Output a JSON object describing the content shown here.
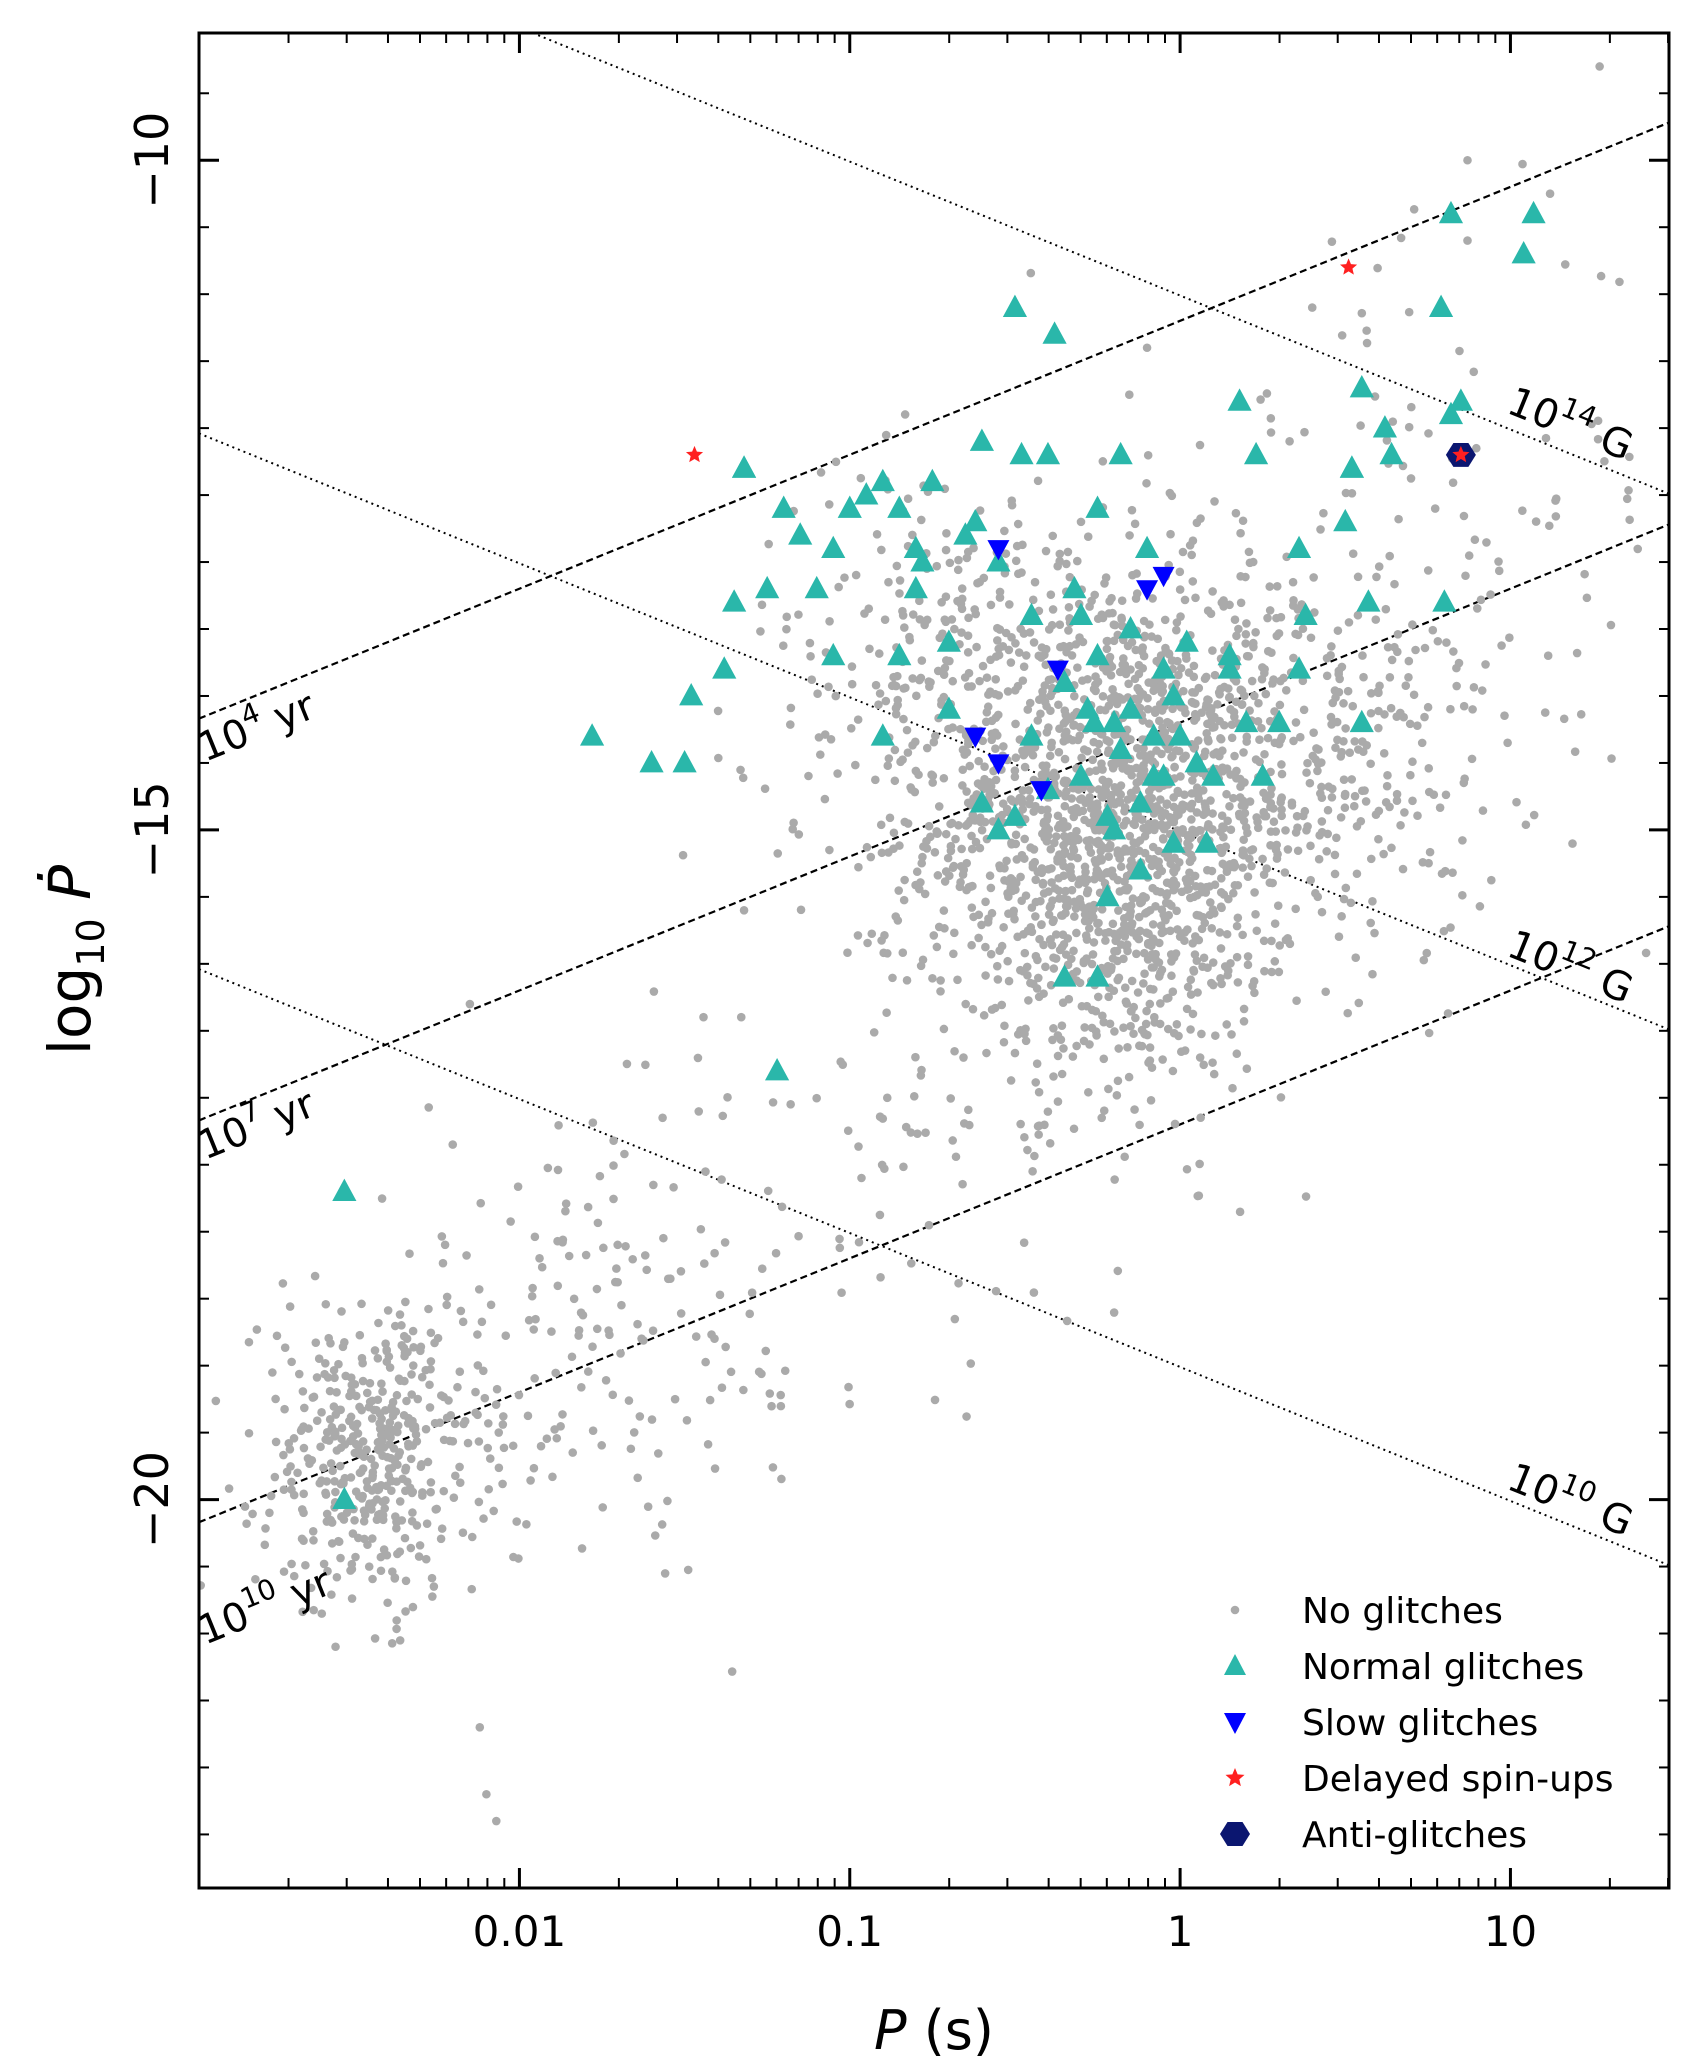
{
  "chart_data": {
    "type": "scatter",
    "xscale": "log",
    "xlim_log10": [
      -2.97,
      1.48
    ],
    "ylim": [
      -22.9,
      -9.05
    ],
    "xlabel_main": "P",
    "xlabel_unit": " (s)",
    "ylabel_main": "log",
    "ylabel_sub": "10",
    "ylabel_var": "Ṗ",
    "xticks": [
      {
        "value_log10": -2,
        "label": "0.01"
      },
      {
        "value_log10": -1,
        "label": "0.1"
      },
      {
        "value_log10": 0,
        "label": "1"
      },
      {
        "value_log10": 1,
        "label": "10"
      }
    ],
    "yticks": [
      {
        "value": -10,
        "label": "−10"
      },
      {
        "value": -15,
        "label": "−15"
      },
      {
        "value": -20,
        "label": "−20"
      }
    ],
    "age_lines": [
      {
        "age_log10": 4,
        "label_base": "10",
        "label_exp": "4",
        "label_unit": " yr"
      },
      {
        "age_log10": 7,
        "label_base": "10",
        "label_exp": "7",
        "label_unit": " yr"
      },
      {
        "age_log10": 10,
        "label_base": "10",
        "label_exp": "10",
        "label_unit": " yr"
      }
    ],
    "field_lines": [
      {
        "b_log10": 14,
        "label_base": "10",
        "label_exp": "14",
        "label_unit": " G"
      },
      {
        "b_log10": 12,
        "label_base": "10",
        "label_exp": "12",
        "label_unit": " G"
      },
      {
        "b_log10": 10,
        "label_base": "10",
        "label_exp": "10",
        "label_unit": " G"
      }
    ],
    "legend": {
      "position": "lower-right",
      "entries": [
        {
          "key": "none",
          "label": "No glitches",
          "color": "#aaaaaa",
          "marker": "dot"
        },
        {
          "key": "normal",
          "label": "Normal glitches",
          "color": "#2ab7aa",
          "marker": "triangle-up"
        },
        {
          "key": "slow",
          "label": "Slow glitches",
          "color": "#0000ff",
          "marker": "triangle-down"
        },
        {
          "key": "delayed",
          "label": "Delayed spin-ups",
          "color": "#ff2020",
          "marker": "star"
        },
        {
          "key": "anti",
          "label": "Anti-glitches",
          "color": "#0b1670",
          "marker": "hexagon"
        }
      ]
    },
    "series": [
      {
        "name": "No glitches",
        "note": "about 2800 pulsars shown as a dense point cloud; representative density groups (log10 P, log10 Pdot centre, spread, count)",
        "groups": [
          {
            "x": -0.2,
            "y": -15.0,
            "sx": 0.28,
            "sy": 0.95,
            "n": 1500
          },
          {
            "x": 0.3,
            "y": -14.4,
            "sx": 0.35,
            "sy": 0.8,
            "n": 450
          },
          {
            "x": -0.7,
            "y": -13.8,
            "sx": 0.3,
            "sy": 0.8,
            "n": 260
          },
          {
            "x": -2.45,
            "y": -19.7,
            "sx": 0.17,
            "sy": 0.55,
            "n": 420
          },
          {
            "x": -1.75,
            "y": -18.8,
            "sx": 0.45,
            "sy": 0.8,
            "n": 180
          },
          {
            "x": -0.9,
            "y": -17.2,
            "sx": 0.45,
            "sy": 0.7,
            "n": 70
          },
          {
            "x": 0.75,
            "y": -12.5,
            "sx": 0.4,
            "sy": 1.0,
            "n": 80
          }
        ],
        "isolated": [
          {
            "x": 1.27,
            "y": -9.3
          },
          {
            "x": 0.87,
            "y": -10.0
          },
          {
            "x": 0.87,
            "y": -10.6
          },
          {
            "x": 1.12,
            "y": -10.25
          },
          {
            "x": 0.4,
            "y": -11.1
          },
          {
            "x": -2.15,
            "y": -16.3
          },
          {
            "x": -2.12,
            "y": -21.7
          },
          {
            "x": -2.1,
            "y": -22.2
          },
          {
            "x": -2.07,
            "y": -22.4
          },
          {
            "x": -1.32,
            "y": -15.6
          },
          {
            "x": -0.3,
            "y": -12.7
          },
          {
            "x": -0.1,
            "y": -11.4
          }
        ]
      },
      {
        "name": "Normal glitches",
        "points": [
          [
            -1.78,
            -14.3
          ],
          [
            -1.32,
            -12.3
          ],
          [
            -2.53,
            -17.7
          ],
          [
            -2.53,
            -20.0
          ],
          [
            -1.22,
            -16.8
          ],
          [
            -1.5,
            -14.5
          ],
          [
            -1.6,
            -14.5
          ],
          [
            -1.48,
            -14.0
          ],
          [
            -1.38,
            -13.8
          ],
          [
            -1.35,
            -13.3
          ],
          [
            -1.32,
            -12.3
          ],
          [
            -1.2,
            -12.6
          ],
          [
            -1.15,
            -12.8
          ],
          [
            -1.1,
            -13.2
          ],
          [
            -1.05,
            -12.9
          ],
          [
            -1.0,
            -12.6
          ],
          [
            -0.95,
            -12.5
          ],
          [
            -0.9,
            -12.4
          ],
          [
            -0.85,
            -13.7
          ],
          [
            -0.8,
            -13.2
          ],
          [
            -0.8,
            -12.9
          ],
          [
            -0.75,
            -12.4
          ],
          [
            -0.7,
            -13.6
          ],
          [
            -0.65,
            -12.8
          ],
          [
            -0.6,
            -12.1
          ],
          [
            -0.55,
            -13.0
          ],
          [
            -0.5,
            -14.9
          ],
          [
            -0.48,
            -12.2
          ],
          [
            -0.45,
            -13.4
          ],
          [
            -0.4,
            -12.2
          ],
          [
            -0.35,
            -13.9
          ],
          [
            -0.3,
            -13.4
          ],
          [
            -0.25,
            -12.6
          ],
          [
            -0.22,
            -15.5
          ],
          [
            -0.2,
            -14.2
          ],
          [
            -0.18,
            -12.2
          ],
          [
            -0.15,
            -13.5
          ],
          [
            -0.12,
            -15.3
          ],
          [
            -0.1,
            -12.9
          ],
          [
            -0.08,
            -14.6
          ],
          [
            -0.05,
            -13.8
          ],
          [
            -0.02,
            -15.1
          ],
          [
            -0.5,
            -11.1
          ],
          [
            -0.38,
            -11.3
          ],
          [
            -0.25,
            -16.1
          ],
          [
            -0.35,
            -16.1
          ],
          [
            -0.6,
            -14.8
          ],
          [
            -0.55,
            -15.0
          ],
          [
            -0.45,
            -14.3
          ],
          [
            -0.4,
            -14.7
          ],
          [
            -0.32,
            -13.2
          ],
          [
            -0.28,
            -14.1
          ],
          [
            -0.3,
            -14.6
          ],
          [
            -0.26,
            -14.2
          ],
          [
            -0.25,
            -13.7
          ],
          [
            -0.22,
            -14.9
          ],
          [
            -0.2,
            -15.0
          ],
          [
            -0.18,
            -14.4
          ],
          [
            -0.15,
            -14.1
          ],
          [
            -0.12,
            -14.8
          ],
          [
            -0.08,
            -14.3
          ],
          [
            -0.05,
            -14.6
          ],
          [
            -0.02,
            -14.0
          ],
          [
            0.0,
            -14.3
          ],
          [
            0.02,
            -13.6
          ],
          [
            0.05,
            -14.5
          ],
          [
            0.08,
            -15.1
          ],
          [
            0.1,
            -14.6
          ],
          [
            0.15,
            -13.7
          ],
          [
            0.2,
            -14.2
          ],
          [
            0.25,
            -14.6
          ],
          [
            0.3,
            -14.2
          ],
          [
            0.36,
            -12.9
          ],
          [
            0.38,
            -13.4
          ],
          [
            0.18,
            -11.8
          ],
          [
            0.23,
            -12.2
          ],
          [
            0.5,
            -12.7
          ],
          [
            0.57,
            -13.3
          ],
          [
            0.52,
            -12.3
          ],
          [
            0.82,
            -10.4
          ],
          [
            1.04,
            -10.7
          ],
          [
            1.07,
            -10.4
          ],
          [
            0.52,
            -12.3
          ],
          [
            0.55,
            -14.2
          ],
          [
            0.36,
            -13.8
          ],
          [
            0.15,
            -13.8
          ],
          [
            0.82,
            -11.9
          ],
          [
            0.62,
            -12.0
          ],
          [
            0.64,
            -12.2
          ],
          [
            0.79,
            -11.1
          ],
          [
            0.55,
            -11.7
          ],
          [
            0.85,
            -11.8
          ],
          [
            0.8,
            -13.3
          ],
          [
            -0.7,
            -14.1
          ],
          [
            -0.9,
            -14.3
          ],
          [
            -0.78,
            -13.0
          ],
          [
            -0.62,
            -12.7
          ],
          [
            -0.85,
            -12.6
          ],
          [
            -1.05,
            -13.7
          ],
          [
            -1.25,
            -13.2
          ]
        ]
      },
      {
        "name": "Slow glitches",
        "points": [
          [
            -0.55,
            -12.9
          ],
          [
            -0.1,
            -13.2
          ],
          [
            -0.05,
            -13.1
          ],
          [
            -0.37,
            -13.8
          ],
          [
            -0.62,
            -14.3
          ],
          [
            -0.55,
            -14.5
          ],
          [
            -0.42,
            -14.7
          ]
        ]
      },
      {
        "name": "Delayed spin-ups",
        "points": [
          [
            -1.47,
            -12.2
          ],
          [
            0.51,
            -10.8
          ],
          [
            0.85,
            -12.2
          ]
        ]
      },
      {
        "name": "Anti-glitches",
        "points": [
          [
            0.85,
            -12.2
          ]
        ]
      }
    ]
  }
}
